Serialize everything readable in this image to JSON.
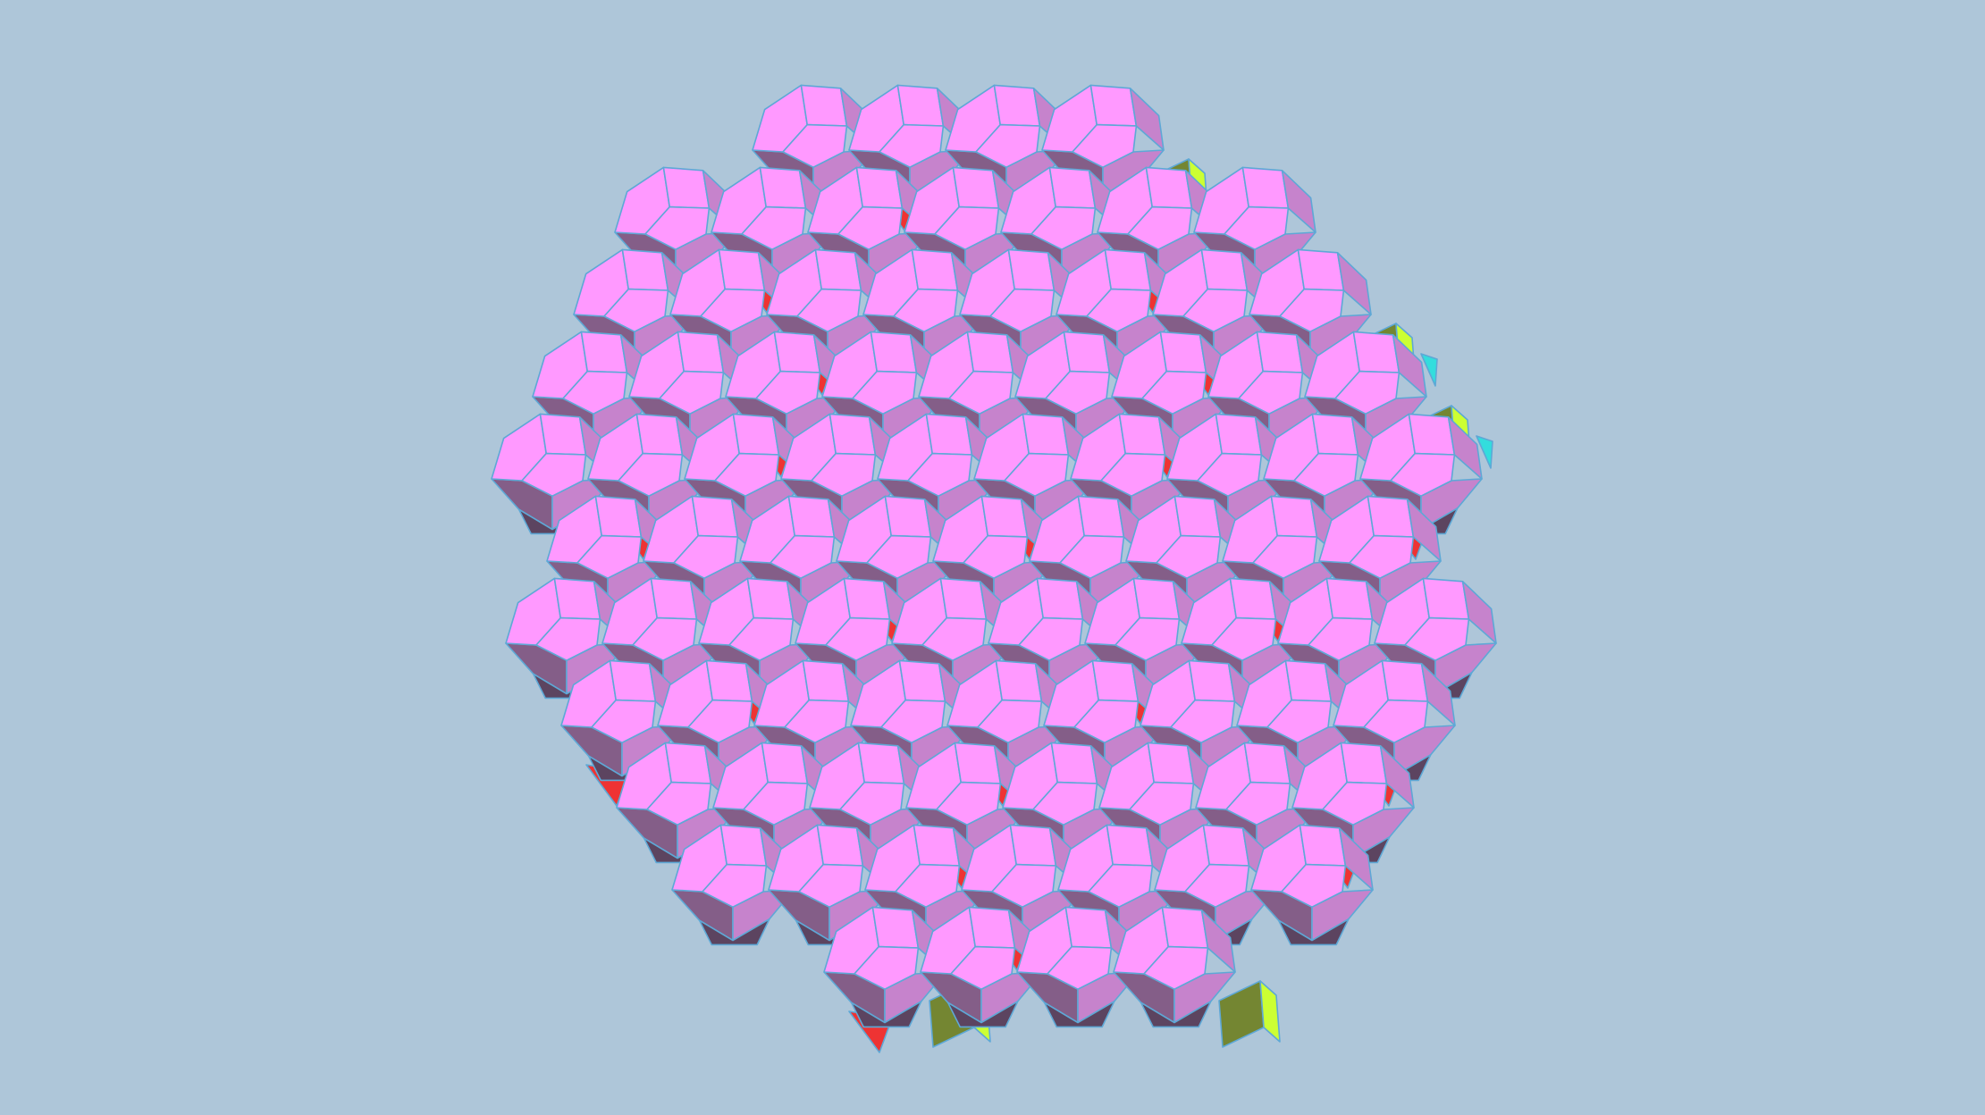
{
  "scene": {
    "subject": "rhombicosidodecahedral-cluster",
    "colors": {
      "background": "#AEC6D9",
      "rhombus_light": "#FF99FF",
      "rhombus_mid": "#C683CC",
      "rhombus_dark": "#845E88",
      "rhombus_shadow": "#5C4460",
      "square_top": "#CCFF33",
      "square_olive": "#748632",
      "triangle_red": "#EE3333",
      "triangle_cyan": "#33DDDD",
      "edge": "#5EA8D6"
    }
  }
}
